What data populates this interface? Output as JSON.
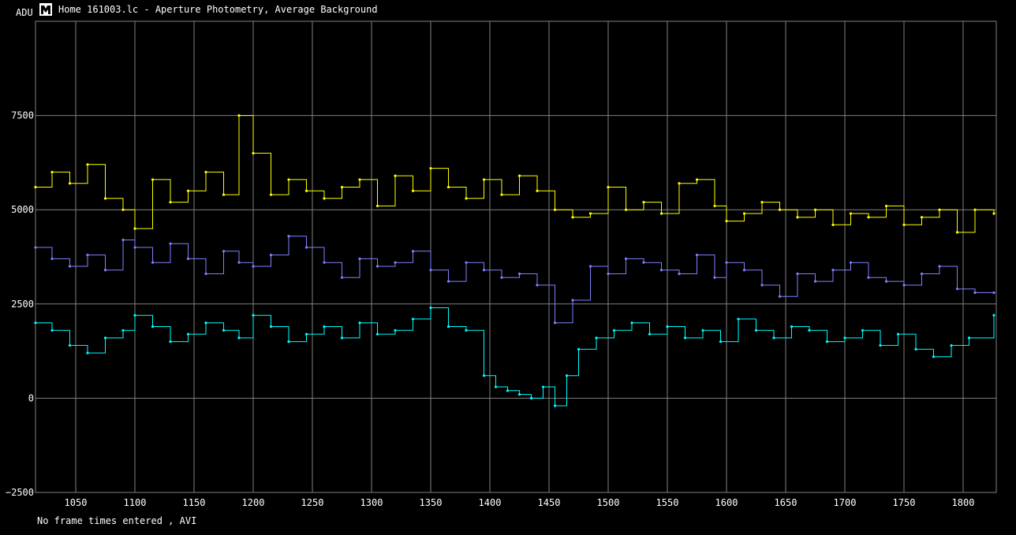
{
  "window": {
    "title": "Home 161003.lc - Aperture Photometry, Average Background",
    "icon": "app-logo-icon"
  },
  "footer": {
    "status": "No frame times entered , AVI"
  },
  "chart_data": {
    "type": "line",
    "ylabel": "ADU",
    "xlabel": "",
    "xlim": [
      1016,
      1828
    ],
    "ylim": [
      -2500,
      10000
    ],
    "xticks": [
      1050,
      1100,
      1150,
      1200,
      1250,
      1300,
      1350,
      1400,
      1450,
      1500,
      1550,
      1600,
      1650,
      1700,
      1750,
      1800
    ],
    "yticks": [
      7500,
      5000,
      2500,
      0,
      -2500
    ],
    "xtick_labels": [
      "1050",
      "1100",
      "1150",
      "1200",
      "1250",
      "1300",
      "1350",
      "1400",
      "1450",
      "1500",
      "1550",
      "1600",
      "1650",
      "1700",
      "1750",
      "1800"
    ],
    "ytick_labels": [
      "7500",
      "5000",
      "2500",
      "0",
      "−2500"
    ],
    "grid": true,
    "background": "#000000",
    "grid_color": "#808080",
    "series": [
      {
        "color": "#ffff00",
        "x": [
          1016,
          1030,
          1045,
          1060,
          1075,
          1090,
          1100,
          1115,
          1130,
          1145,
          1160,
          1175,
          1188,
          1200,
          1215,
          1230,
          1245,
          1260,
          1275,
          1290,
          1305,
          1320,
          1335,
          1350,
          1365,
          1380,
          1395,
          1410,
          1425,
          1440,
          1455,
          1470,
          1485,
          1500,
          1515,
          1530,
          1545,
          1560,
          1575,
          1590,
          1600,
          1615,
          1630,
          1645,
          1660,
          1675,
          1690,
          1705,
          1720,
          1735,
          1750,
          1765,
          1780,
          1795,
          1810,
          1826
        ],
        "y": [
          5600,
          6000,
          5700,
          6200,
          5300,
          5000,
          4500,
          5800,
          5200,
          5500,
          6000,
          5400,
          7500,
          6500,
          5400,
          5800,
          5500,
          5300,
          5600,
          5800,
          5100,
          5900,
          5500,
          6100,
          5600,
          5300,
          5800,
          5400,
          5900,
          5500,
          5000,
          4800,
          4900,
          5600,
          5000,
          5200,
          4900,
          5700,
          5800,
          5100,
          4700,
          4900,
          5200,
          5000,
          4800,
          5000,
          4600,
          4900,
          4800,
          5100,
          4600,
          4800,
          5000,
          4400,
          5000,
          4900
        ]
      },
      {
        "color": "#8080ff",
        "x": [
          1016,
          1030,
          1045,
          1060,
          1075,
          1090,
          1100,
          1115,
          1130,
          1145,
          1160,
          1175,
          1188,
          1200,
          1215,
          1230,
          1245,
          1260,
          1275,
          1290,
          1305,
          1320,
          1335,
          1350,
          1365,
          1380,
          1395,
          1410,
          1425,
          1440,
          1455,
          1470,
          1485,
          1500,
          1515,
          1530,
          1545,
          1560,
          1575,
          1590,
          1600,
          1615,
          1630,
          1645,
          1660,
          1675,
          1690,
          1705,
          1720,
          1735,
          1750,
          1765,
          1780,
          1795,
          1810,
          1826
        ],
        "y": [
          4000,
          3700,
          3500,
          3800,
          3400,
          4200,
          4000,
          3600,
          4100,
          3700,
          3300,
          3900,
          3600,
          3500,
          3800,
          4300,
          4000,
          3600,
          3200,
          3700,
          3500,
          3600,
          3900,
          3400,
          3100,
          3600,
          3400,
          3200,
          3300,
          3000,
          2000,
          2600,
          3500,
          3300,
          3700,
          3600,
          3400,
          3300,
          3800,
          3200,
          3600,
          3400,
          3000,
          2700,
          3300,
          3100,
          3400,
          3600,
          3200,
          3100,
          3000,
          3300,
          3500,
          2900,
          2800,
          2800
        ]
      },
      {
        "color": "#00ffff",
        "x": [
          1016,
          1030,
          1045,
          1060,
          1075,
          1090,
          1100,
          1115,
          1130,
          1145,
          1160,
          1175,
          1188,
          1200,
          1215,
          1230,
          1245,
          1260,
          1275,
          1290,
          1305,
          1320,
          1335,
          1350,
          1365,
          1380,
          1395,
          1405,
          1415,
          1425,
          1435,
          1445,
          1455,
          1465,
          1475,
          1490,
          1505,
          1520,
          1535,
          1550,
          1565,
          1580,
          1595,
          1610,
          1625,
          1640,
          1655,
          1670,
          1685,
          1700,
          1715,
          1730,
          1745,
          1760,
          1775,
          1790,
          1805,
          1826
        ],
        "y": [
          2000,
          1800,
          1400,
          1200,
          1600,
          1800,
          2200,
          1900,
          1500,
          1700,
          2000,
          1800,
          1600,
          2200,
          1900,
          1500,
          1700,
          1900,
          1600,
          2000,
          1700,
          1800,
          2100,
          2400,
          1900,
          1800,
          600,
          300,
          200,
          100,
          0,
          300,
          -200,
          600,
          1300,
          1600,
          1800,
          2000,
          1700,
          1900,
          1600,
          1800,
          1500,
          2100,
          1800,
          1600,
          1900,
          1800,
          1500,
          1600,
          1800,
          1400,
          1700,
          1300,
          1100,
          1400,
          1600,
          2200
        ]
      }
    ]
  }
}
